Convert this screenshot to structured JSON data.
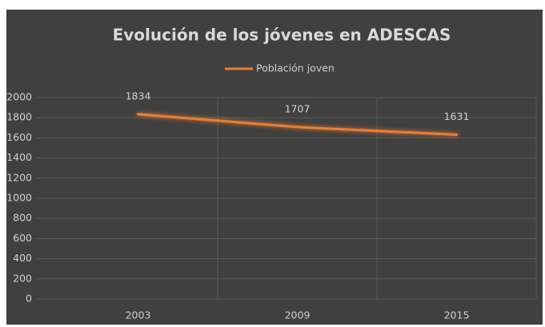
{
  "chart_data": {
    "type": "line",
    "title": "Evolución de los jóvenes en ADESCAS",
    "categories": [
      "2003",
      "2009",
      "2015"
    ],
    "series": [
      {
        "name": "Población joven",
        "color": "#ED7D31",
        "values": [
          1834,
          1707,
          1631
        ]
      }
    ],
    "ylim": [
      0,
      2000
    ],
    "yticks": [
      0,
      200,
      400,
      600,
      800,
      1000,
      1200,
      1400,
      1600,
      1800,
      2000
    ],
    "grid": true,
    "legend": "top"
  }
}
